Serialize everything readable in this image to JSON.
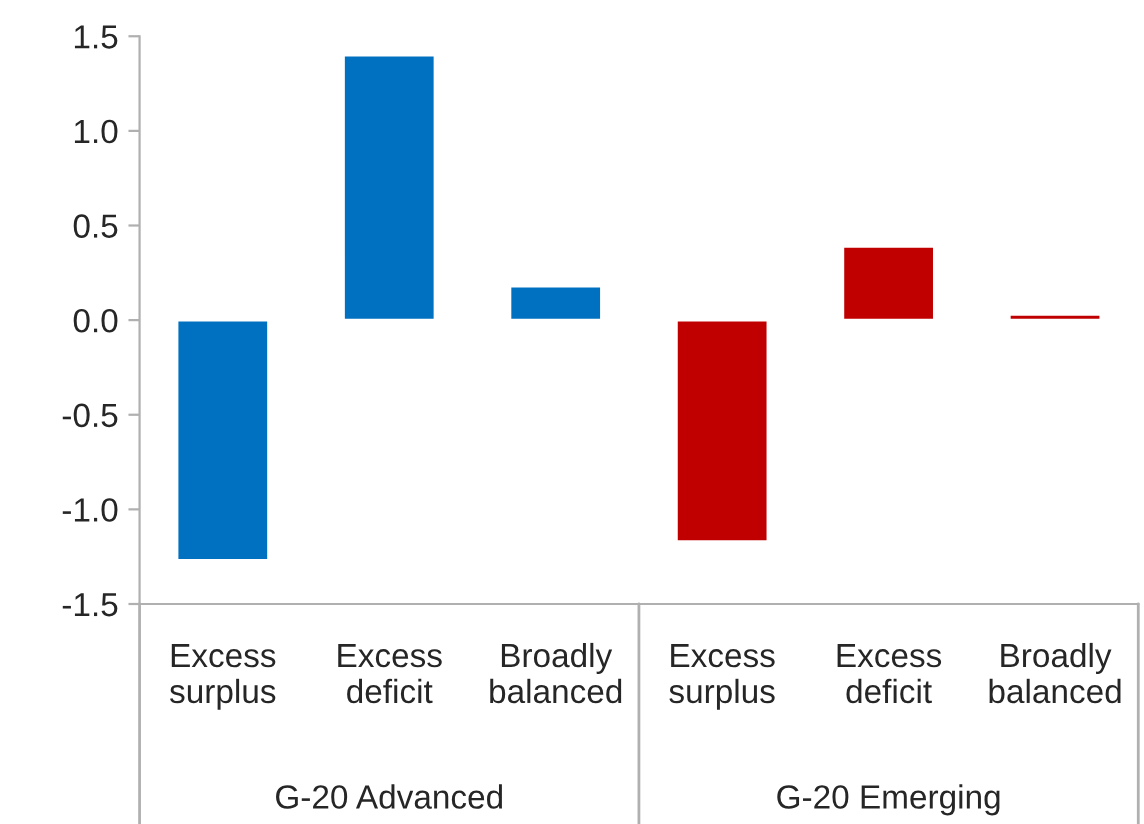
{
  "chart_data": {
    "type": "bar",
    "categories": [
      "Excess surplus",
      "Excess deficit",
      "Broadly balanced",
      "Excess surplus",
      "Excess deficit",
      "Broadly balanced"
    ],
    "series": [
      {
        "color": "#0070c0",
        "values": [
          -1.27,
          1.4,
          0.18,
          null,
          null,
          null
        ]
      },
      {
        "color": "#c00000",
        "values": [
          null,
          null,
          null,
          -1.17,
          0.39,
          0.03
        ]
      }
    ],
    "ylim": [
      -1.5,
      1.5
    ],
    "yticks": [
      {
        "value": -1.5,
        "label": "-1.5"
      },
      {
        "value": -1.0,
        "label": "-1.0"
      },
      {
        "value": -0.5,
        "label": "-0.5"
      },
      {
        "value": 0.0,
        "label": "0.0"
      },
      {
        "value": 0.5,
        "label": "0.5"
      },
      {
        "value": 1.0,
        "label": "1.0"
      },
      {
        "value": 1.5,
        "label": "1.5"
      }
    ],
    "annotations": [
      "G-20 Advanced",
      "G-20 Emerging"
    ],
    "grid": false,
    "legend": false
  }
}
